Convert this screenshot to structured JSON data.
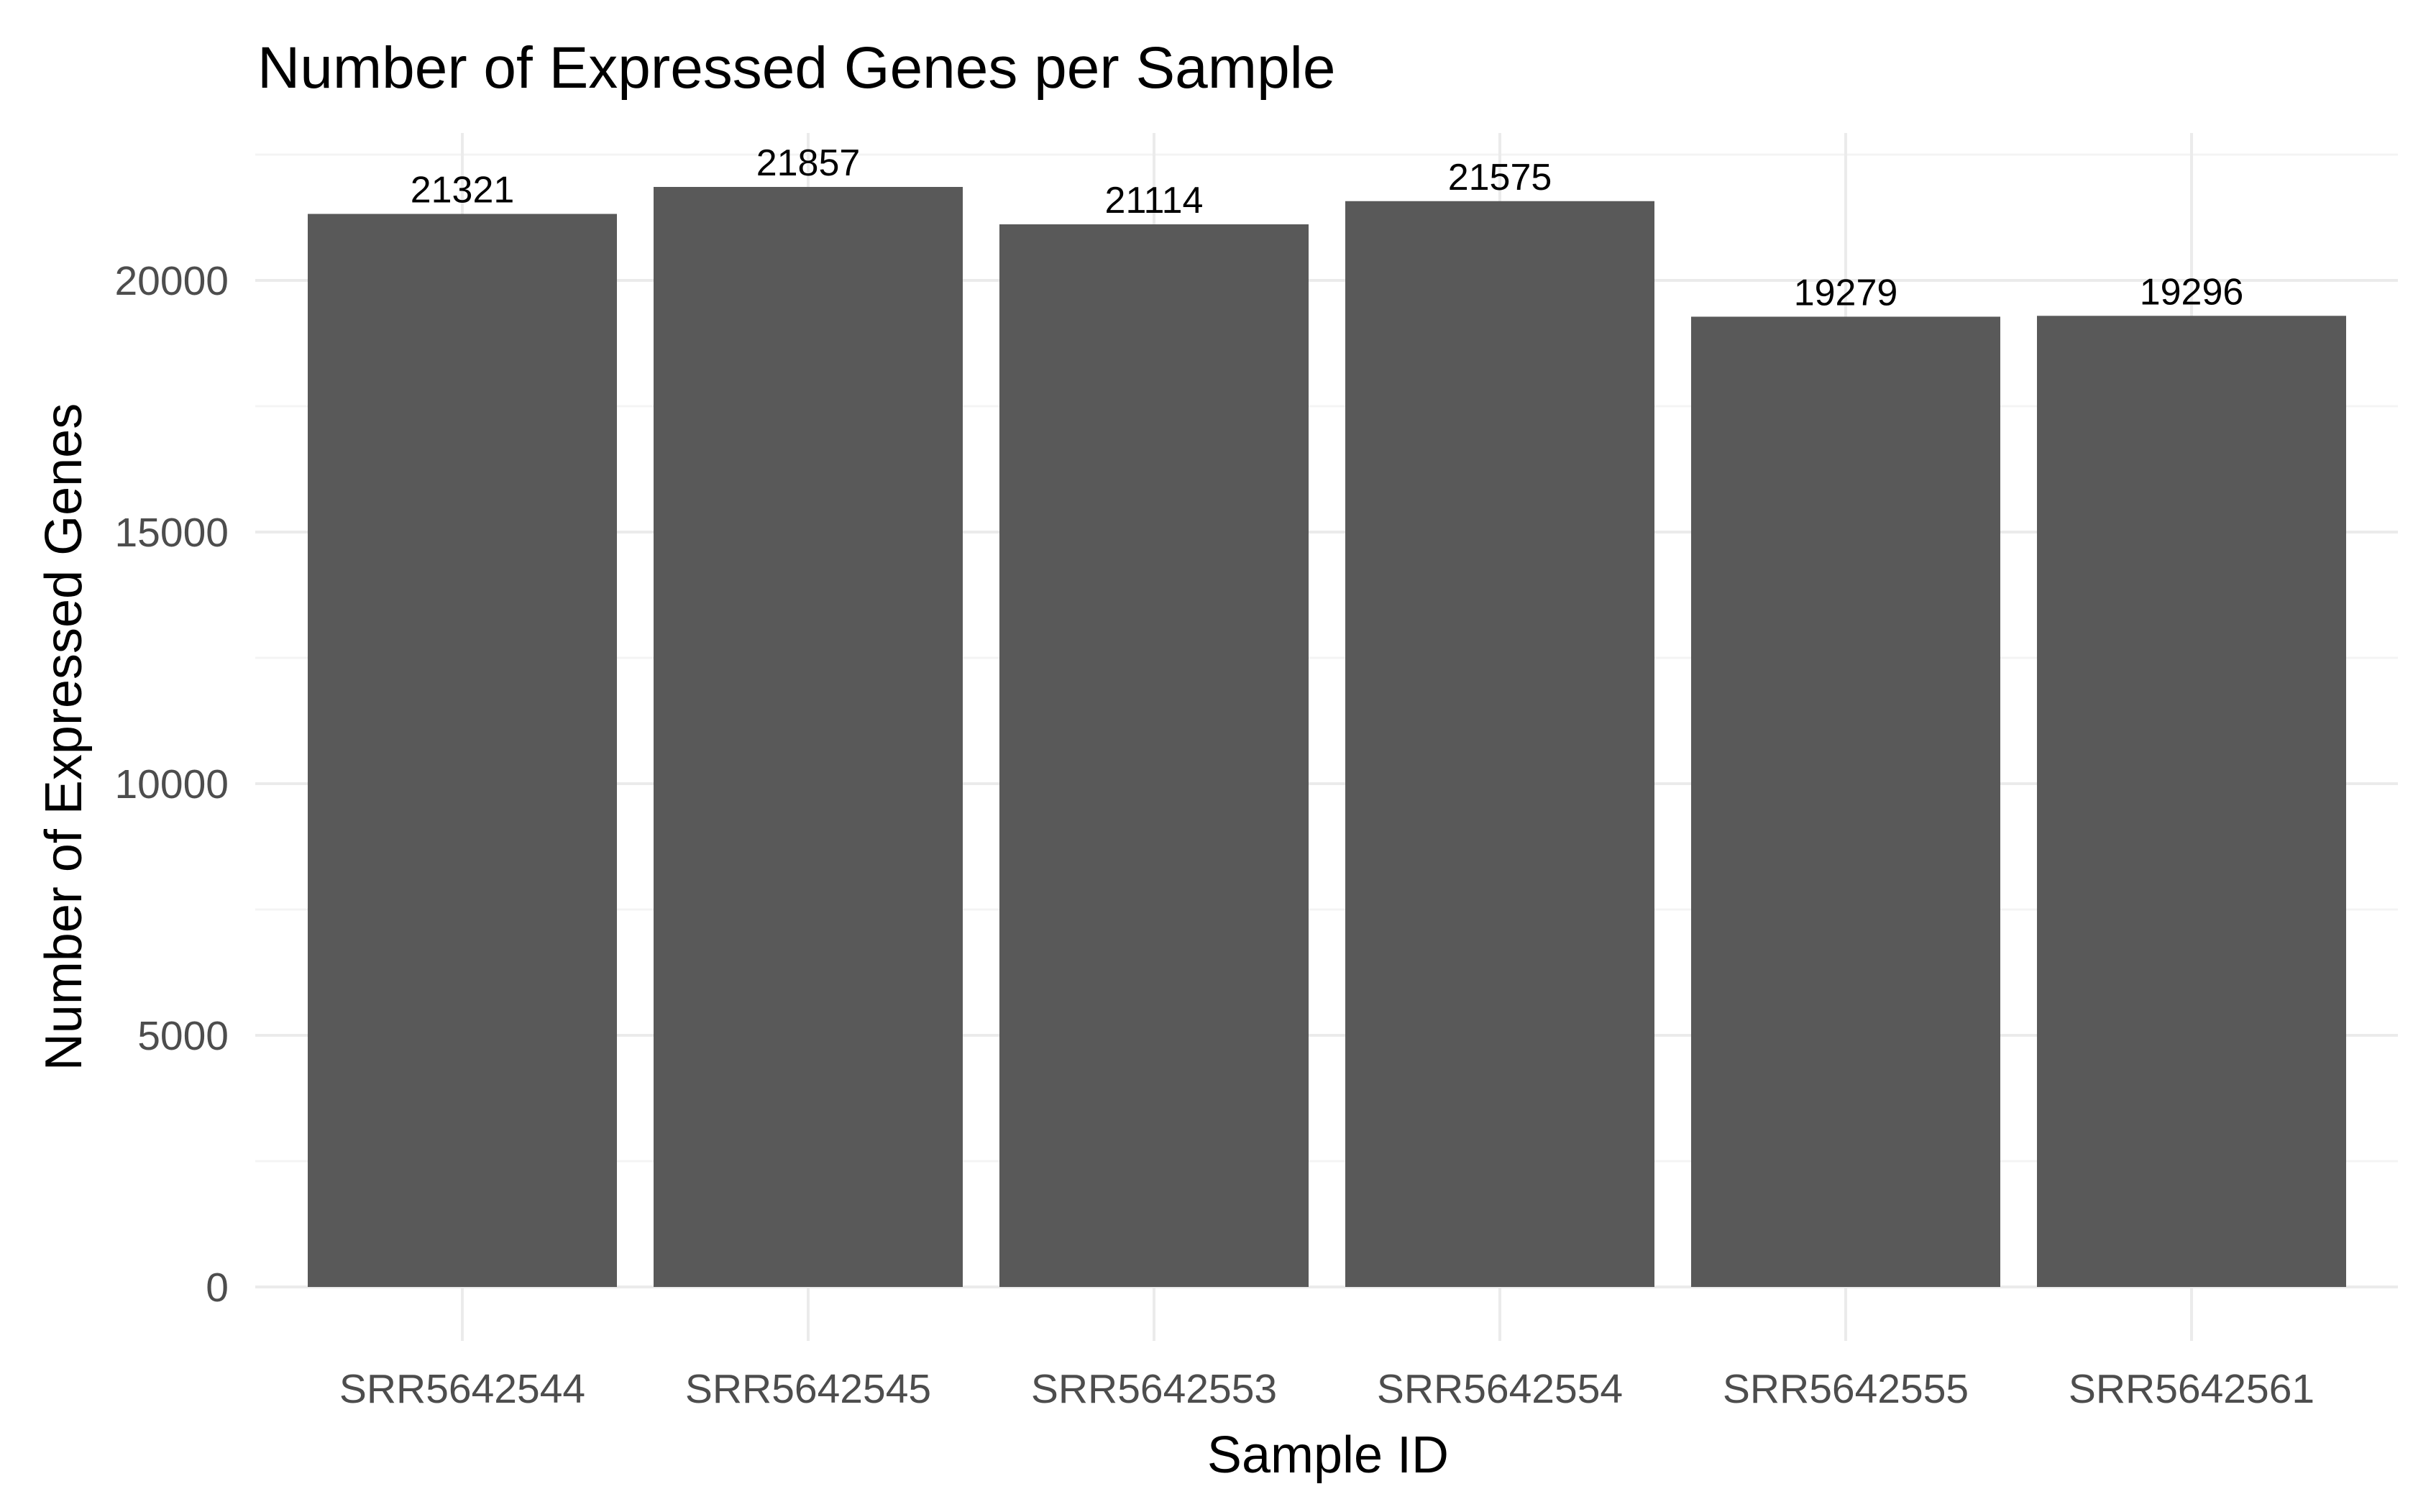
{
  "chart_data": {
    "type": "bar",
    "title": "Number of Expressed Genes per Sample",
    "xlabel": "Sample ID",
    "ylabel": "Number of Expressed Genes",
    "categories": [
      "SRR5642544",
      "SRR5642545",
      "SRR5642553",
      "SRR5642554",
      "SRR5642555",
      "SRR5642561"
    ],
    "values": [
      21321,
      21857,
      21114,
      21575,
      19279,
      19296
    ],
    "data_labels": [
      "21321",
      "21857",
      "21114",
      "21575",
      "19279",
      "19296"
    ],
    "yticks": [
      0,
      5000,
      10000,
      15000,
      20000
    ],
    "ytick_labels": [
      "0",
      "5000",
      "10000",
      "15000",
      "20000"
    ],
    "ylim": [
      0,
      22500
    ],
    "grid": true,
    "legend": "none",
    "colors": {
      "bar": "#595959",
      "grid_major": "#ebebeb",
      "grid_minor": "#f4f4f4",
      "tick_text": "#4d4d4d",
      "text": "#000000"
    }
  }
}
